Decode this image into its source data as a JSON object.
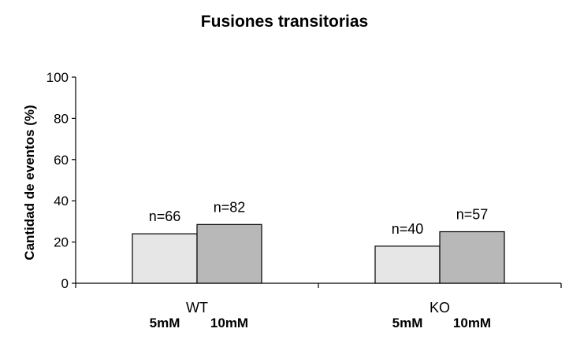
{
  "chart_data": {
    "type": "bar",
    "title": "Fusiones transitorias",
    "ylabel": "Cantidad de eventos (%)",
    "xlabel": "",
    "ylim": [
      0,
      100
    ],
    "yticks": [
      0,
      20,
      40,
      60,
      80,
      100
    ],
    "grid": false,
    "categories": [
      "WT",
      "KO"
    ],
    "series": [
      {
        "name": "5mM",
        "color": "#e6e6e6",
        "values": [
          24,
          18
        ],
        "labels": [
          "n=66",
          "n=40"
        ]
      },
      {
        "name": "10mM",
        "color": "#b8b8b8",
        "values": [
          28.5,
          25
        ],
        "labels": [
          "n=82",
          "n=57"
        ]
      }
    ]
  }
}
